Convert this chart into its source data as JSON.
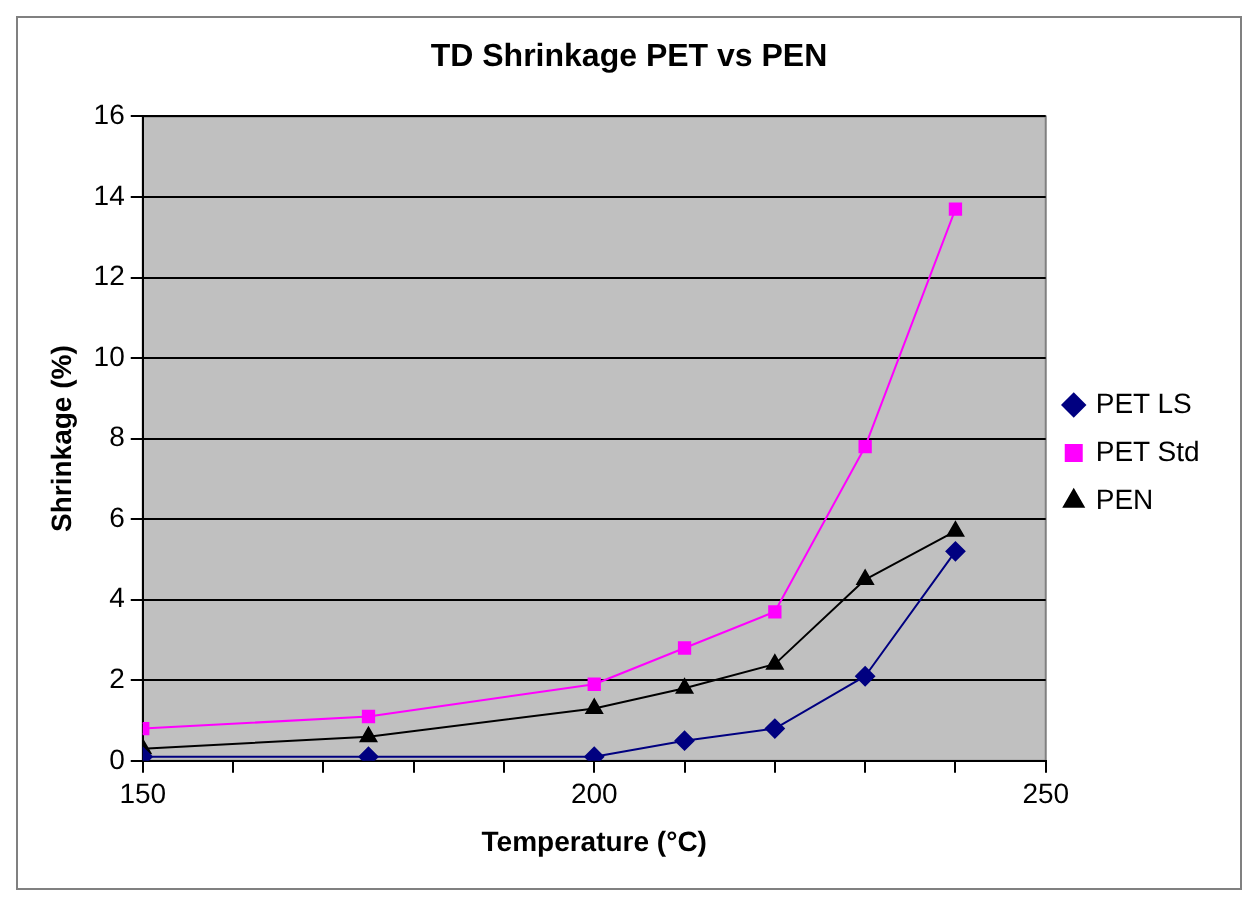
{
  "chart_data": {
    "type": "line",
    "title": "TD Shrinkage PET vs PEN",
    "xlabel": "Temperature (°C)",
    "ylabel": "Shrinkage (%)",
    "x": [
      150,
      175,
      200,
      210,
      220,
      230,
      240
    ],
    "series": [
      {
        "name": "PET LS",
        "color": "#000080",
        "marker": "diamond",
        "values": [
          0.1,
          0.1,
          0.1,
          0.5,
          0.8,
          2.1,
          5.2
        ]
      },
      {
        "name": "PET Std",
        "color": "#ff00ff",
        "marker": "square",
        "values": [
          0.8,
          1.1,
          1.9,
          2.8,
          3.7,
          7.8,
          13.7
        ]
      },
      {
        "name": "PEN",
        "color": "#000000",
        "marker": "triangle",
        "values": [
          0.3,
          0.6,
          1.3,
          1.8,
          2.4,
          4.5,
          5.7
        ]
      }
    ],
    "xlim": [
      150,
      250
    ],
    "xticks": [
      150,
      {
        "value": 160,
        "label": null
      },
      {
        "value": 170,
        "label": null
      },
      {
        "value": 180,
        "label": null
      },
      {
        "value": 190,
        "label": null
      },
      200,
      {
        "value": 210,
        "label": null
      },
      {
        "value": 220,
        "label": null
      },
      {
        "value": 230,
        "label": null
      },
      {
        "value": 240,
        "label": null
      },
      250
    ],
    "ylim": [
      0,
      16
    ],
    "yticks": [
      0,
      2,
      4,
      6,
      8,
      10,
      12,
      14,
      16
    ],
    "grid": "y",
    "legend": "right"
  }
}
